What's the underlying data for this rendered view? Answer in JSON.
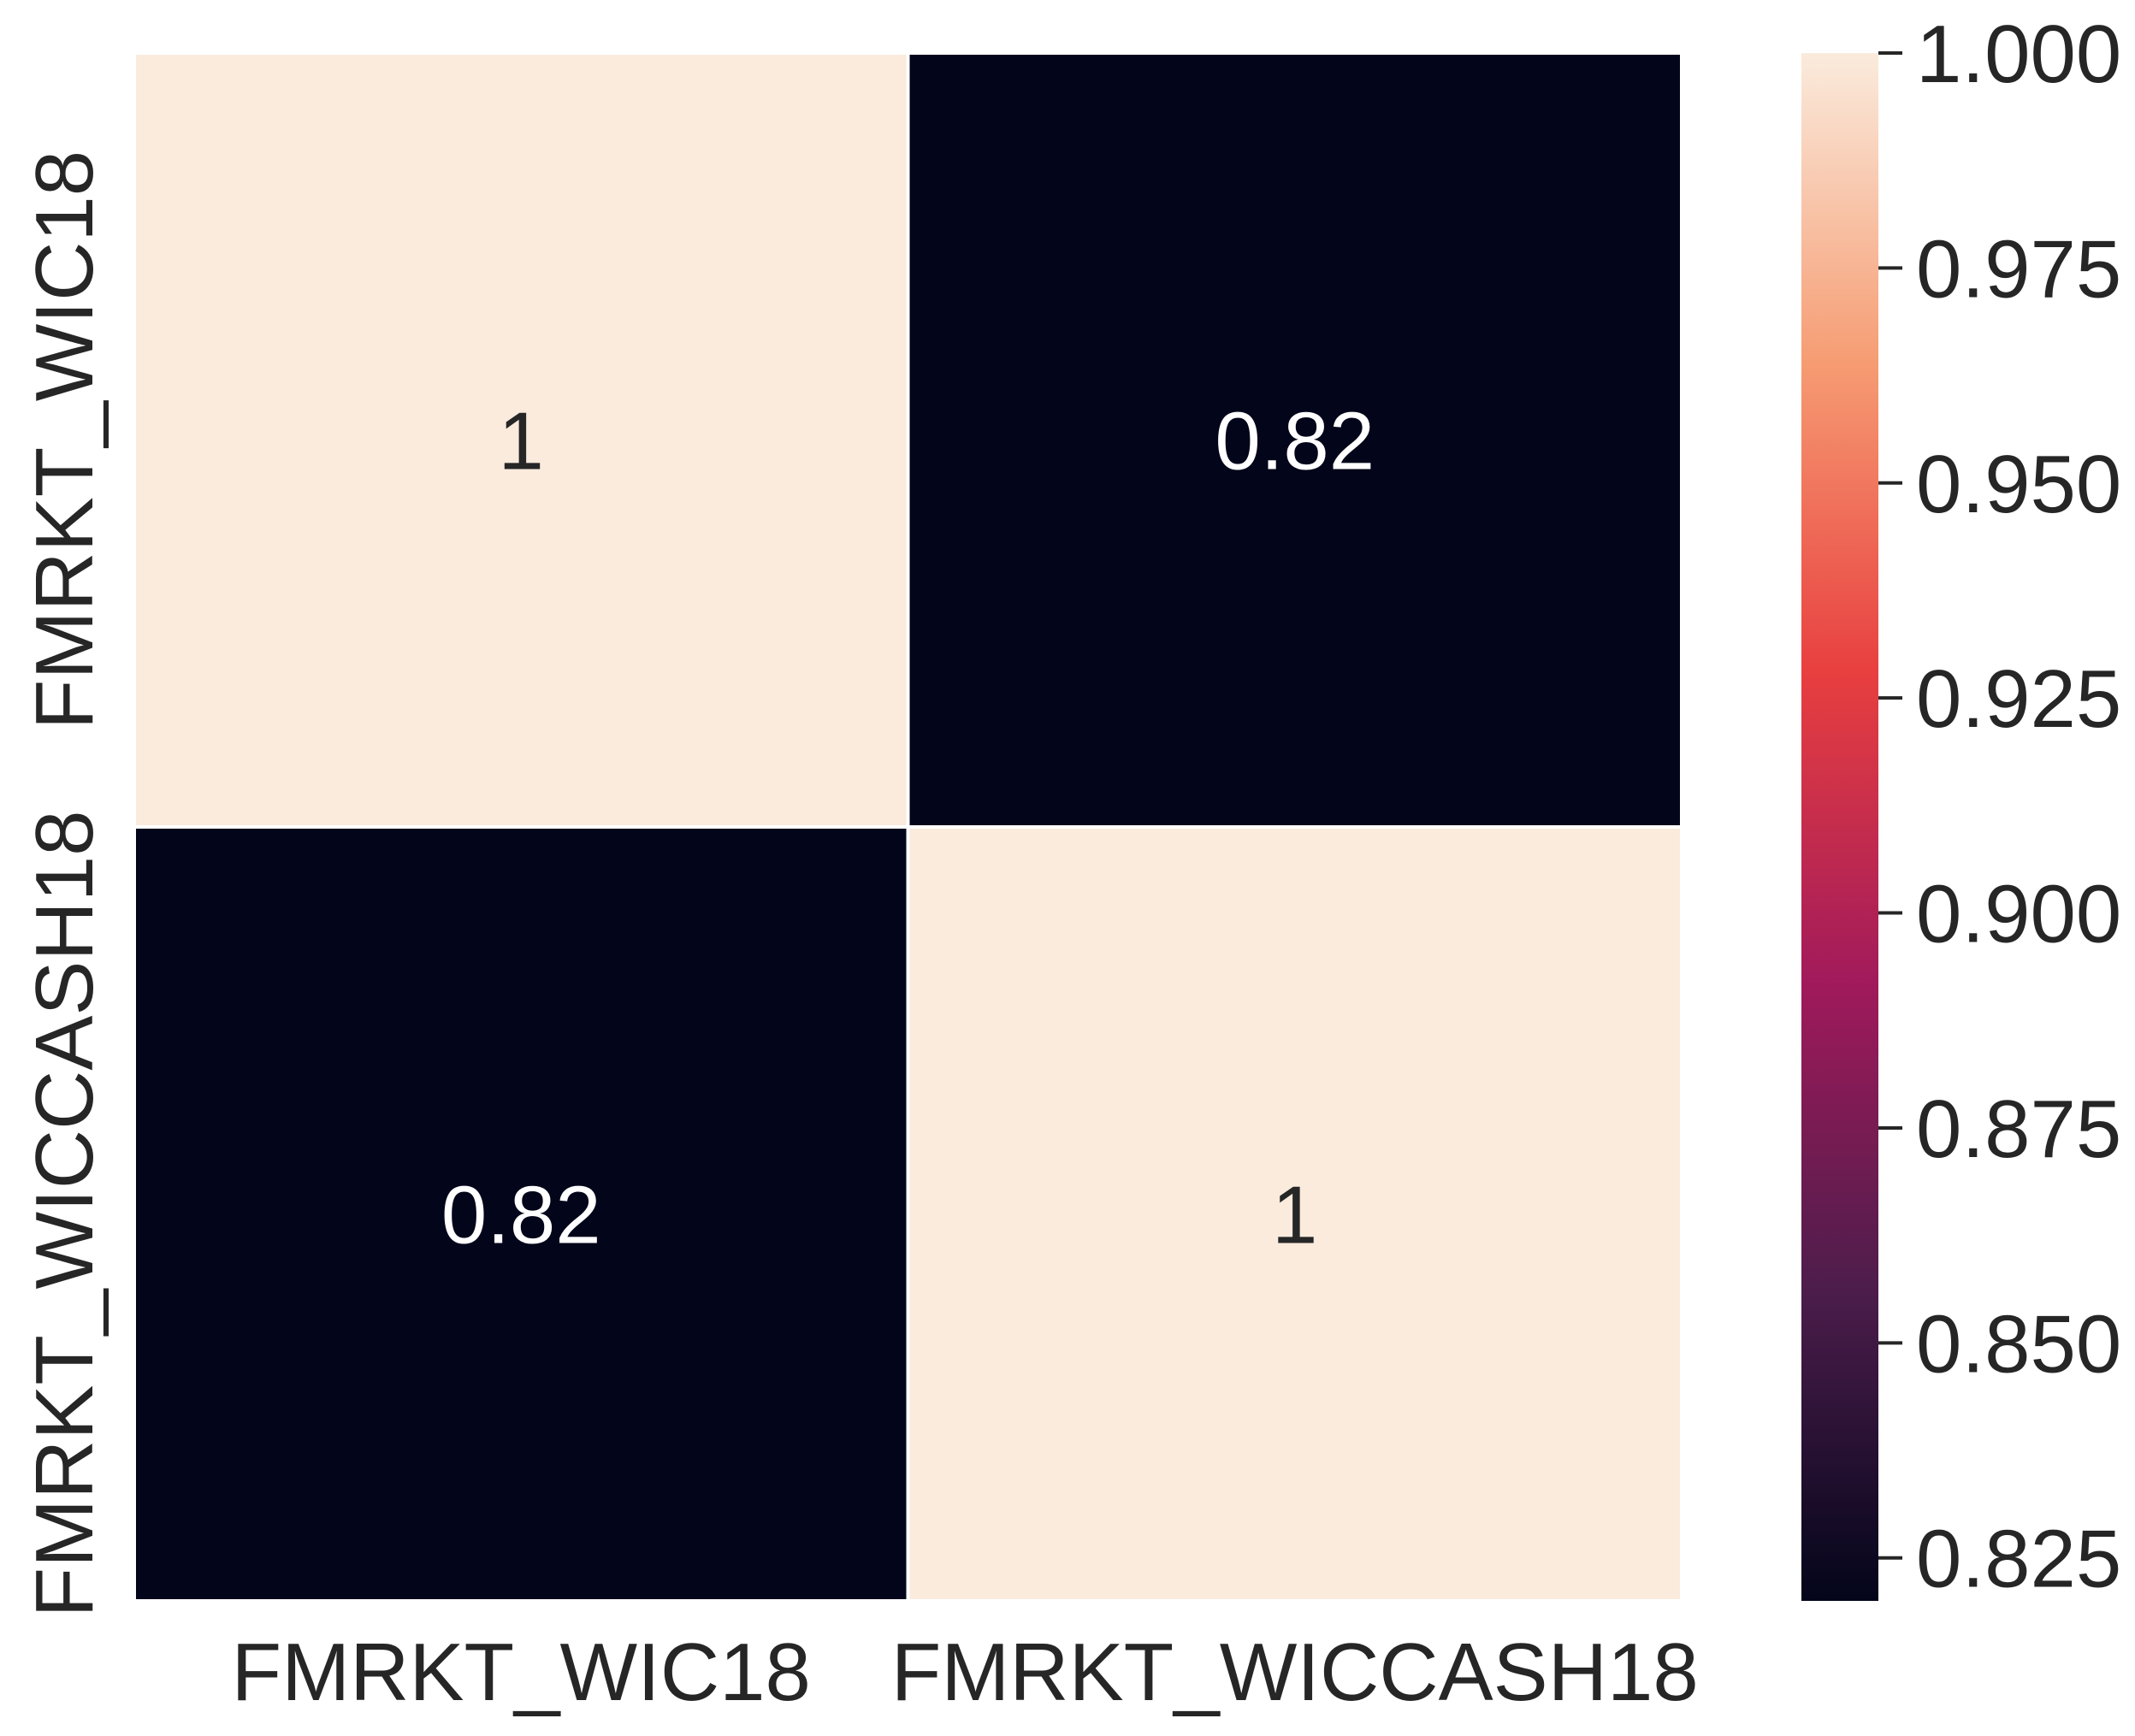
{
  "chart_data": {
    "type": "heatmap",
    "title": "",
    "xlabel": "",
    "ylabel": "",
    "x_categories": [
      "FMRKT_WIC18",
      "FMRKT_WICCASH18"
    ],
    "y_categories": [
      "FMRKT_WIC18",
      "FMRKT_WICCASH18"
    ],
    "values": [
      [
        1.0,
        0.82
      ],
      [
        0.82,
        1.0
      ]
    ],
    "annotations": [
      [
        "1",
        "0.82"
      ],
      [
        "0.82",
        "1"
      ]
    ],
    "colorbar": {
      "vmin": 0.82,
      "vmax": 1.0,
      "ticks": [
        0.825,
        0.85,
        0.875,
        0.9,
        0.925,
        0.95,
        0.975,
        1.0
      ],
      "tick_labels": [
        "0.825",
        "0.850",
        "0.875",
        "0.900",
        "0.925",
        "0.950",
        "0.975",
        "1.000"
      ],
      "colormap": "rocket",
      "colormap_stops": [
        "#03051a",
        "#4c1d4b",
        "#a11a5b",
        "#e83f3f",
        "#f69c73",
        "#faebdd"
      ]
    },
    "colors": {
      "low": "#03051a",
      "high": "#faebdd",
      "text_on_dark": "#ffffff",
      "text_on_light": "#262626",
      "tick_text": "#262626"
    }
  }
}
